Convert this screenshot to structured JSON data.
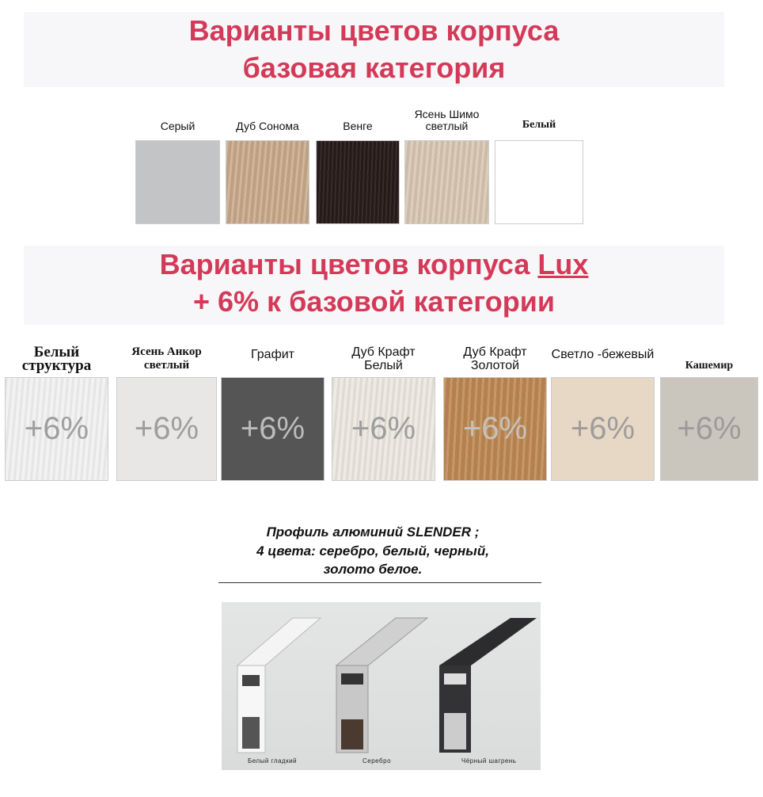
{
  "base": {
    "title_line1": "Варианты цветов корпуса",
    "title_line2": "базовая категория",
    "swatches": [
      {
        "label": "Серый",
        "color": "#c3c4c6"
      },
      {
        "label": "Дуб Сонома",
        "color": "#c9a98a"
      },
      {
        "label": "Венге",
        "color": "#2e211f"
      },
      {
        "label": "Ясень Шимо светлый",
        "color": "#d8c7b2"
      },
      {
        "label": "Белый",
        "color": "#ffffff"
      }
    ]
  },
  "lux": {
    "title_line1_prefix": "Варианты цветов корпуса ",
    "title_line1_lux": "Lux",
    "title_line2": "+ 6% к базовой категории",
    "swatches": [
      {
        "label": "Белый структура",
        "color": "#ececec",
        "badge": "+6%"
      },
      {
        "label": "Ясень Анкор светлый",
        "color": "#e8e7e6",
        "badge": "+6%"
      },
      {
        "label": "Графит",
        "color": "#555556",
        "badge": "+6%"
      },
      {
        "label": "Дуб Крафт Белый",
        "color": "#e5e1d8",
        "badge": "+6%"
      },
      {
        "label": "Дуб Крафт Золотой",
        "color": "#c18c55",
        "badge": "+6%"
      },
      {
        "label": "Светло -бежевый",
        "color": "#e7d8c6",
        "badge": "+6%"
      },
      {
        "label": "Кашемир",
        "color": "#cbc6bd",
        "badge": "+6%"
      }
    ]
  },
  "profile": {
    "line1": "Профиль алюминий SLENDER ;",
    "line2": "4 цвета: серебро, белый, черный,",
    "line3": "золото белое.",
    "captions": [
      "Белый гладкий",
      "Серебро",
      "Чёрный шагрень"
    ]
  },
  "title_color": "#d43a58"
}
